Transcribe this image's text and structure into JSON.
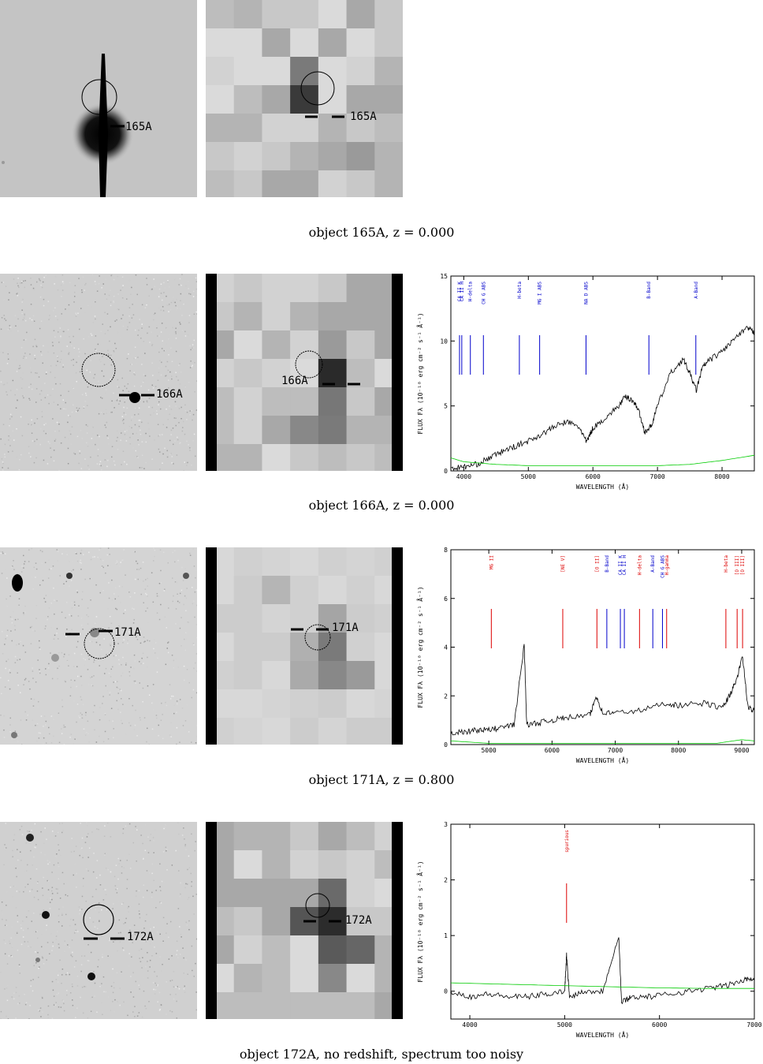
{
  "objects": [
    {
      "id": "165A",
      "caption": "object 165A, z = 0.000",
      "stamp_label": "165A",
      "has_spectrum": false
    },
    {
      "id": "166A",
      "caption": "object 166A, z = 0.000",
      "stamp_label": "166A",
      "has_spectrum": true
    },
    {
      "id": "171A",
      "caption": "object 171A, z = 0.800",
      "stamp_label": "171A",
      "has_spectrum": true
    },
    {
      "id": "172A",
      "caption": "object 172A, no redshift, spectrum too noisy",
      "stamp_label": "172A",
      "has_spectrum": true
    }
  ],
  "axis_text": {
    "xlabel": "WAVELENGTH (Å)",
    "ylabel": "FLUX Fλ (10⁻¹⁸ erg cm⁻² s⁻¹ Å⁻¹)"
  },
  "colors": {
    "spectrum": "#000000",
    "noise": "#00cc00",
    "emission_marker": "#dd0000",
    "absorption_marker": "#0000cc"
  },
  "chart_data": [
    {
      "type": "line",
      "object": "166A",
      "xlabel": "WAVELENGTH (Å)",
      "ylabel": "FLUX Fλ (10⁻¹⁸ erg cm⁻² s⁻¹ Å⁻¹)",
      "xlim": [
        3800,
        8500
      ],
      "ylim": [
        0,
        15
      ],
      "xticks": [
        "4000",
        "5000",
        "6000",
        "7000",
        "8000"
      ],
      "yticks": [
        "0",
        "5",
        "10",
        "15"
      ],
      "line_markers": [
        {
          "name": "CA II K",
          "x": 3934,
          "kind": "absorption"
        },
        {
          "name": "CA II H",
          "x": 3969,
          "kind": "absorption"
        },
        {
          "name": "H-delta",
          "x": 4102,
          "kind": "absorption"
        },
        {
          "name": "CH G ABS",
          "x": 4304,
          "kind": "absorption"
        },
        {
          "name": "H-beta",
          "x": 4861,
          "kind": "absorption"
        },
        {
          "name": "MG I ABS",
          "x": 5175,
          "kind": "absorption"
        },
        {
          "name": "NA D ABS",
          "x": 5893,
          "kind": "absorption"
        },
        {
          "name": "B-Band",
          "x": 6867,
          "kind": "absorption"
        },
        {
          "name": "A-Band",
          "x": 7594,
          "kind": "absorption"
        }
      ],
      "series": [
        {
          "kind": "flux",
          "x": [
            3800,
            4000,
            4200,
            4400,
            4600,
            4800,
            5000,
            5200,
            5400,
            5600,
            5800,
            5900,
            6000,
            6200,
            6400,
            6500,
            6600,
            6700,
            6800,
            6900,
            7000,
            7200,
            7400,
            7500,
            7600,
            7700,
            7800,
            8000,
            8200,
            8400,
            8500
          ],
          "y": [
            0.2,
            0.3,
            0.5,
            1.0,
            1.5,
            1.9,
            2.3,
            2.8,
            3.4,
            3.8,
            3.3,
            2.2,
            3.3,
            4.1,
            5.0,
            5.7,
            5.5,
            4.8,
            3.0,
            3.4,
            5.0,
            7.5,
            8.6,
            7.5,
            6.2,
            8.0,
            8.5,
            9.2,
            10.2,
            11.0,
            10.6
          ]
        },
        {
          "kind": "noise",
          "x": [
            3800,
            4000,
            4500,
            5000,
            5500,
            6000,
            6500,
            7000,
            7500,
            8000,
            8500
          ],
          "y": [
            1.0,
            0.7,
            0.5,
            0.4,
            0.4,
            0.4,
            0.4,
            0.4,
            0.5,
            0.8,
            1.2
          ]
        }
      ]
    },
    {
      "type": "line",
      "object": "171A",
      "xlabel": "WAVELENGTH (Å)",
      "ylabel": "FLUX Fλ (10⁻¹⁸ erg cm⁻² s⁻¹ Å⁻¹)",
      "xlim": [
        4400,
        9200
      ],
      "ylim": [
        0,
        8
      ],
      "xticks": [
        "5000",
        "6000",
        "7000",
        "8000",
        "9000"
      ],
      "yticks": [
        "0",
        "2",
        "4",
        "6",
        "8"
      ],
      "line_markers": [
        {
          "name": "MG II",
          "x": 5040,
          "kind": "emission"
        },
        {
          "name": "[NE V]",
          "x": 6170,
          "kind": "emission"
        },
        {
          "name": "[O II]",
          "x": 6710,
          "kind": "emission"
        },
        {
          "name": "B-Band",
          "x": 6867,
          "kind": "absorption"
        },
        {
          "name": "CA II K",
          "x": 7081,
          "kind": "absorption"
        },
        {
          "name": "CA II H",
          "x": 7144,
          "kind": "absorption"
        },
        {
          "name": "H-delta",
          "x": 7384,
          "kind": "emission"
        },
        {
          "name": "A-Band",
          "x": 7594,
          "kind": "absorption"
        },
        {
          "name": "CH G ABS",
          "x": 7747,
          "kind": "absorption"
        },
        {
          "name": "H-gamma",
          "x": 7813,
          "kind": "emission"
        },
        {
          "name": "H-beta",
          "x": 8750,
          "kind": "emission"
        },
        {
          "name": "[O III]",
          "x": 8928,
          "kind": "emission"
        },
        {
          "name": "[O III]",
          "x": 9014,
          "kind": "emission"
        }
      ],
      "series": [
        {
          "kind": "flux",
          "x": [
            4400,
            4600,
            4800,
            5000,
            5200,
            5400,
            5560,
            5600,
            5800,
            6000,
            6200,
            6600,
            6700,
            6800,
            7000,
            7400,
            7800,
            8000,
            8400,
            8700,
            8800,
            8900,
            9014,
            9100,
            9200
          ],
          "y": [
            0.5,
            0.5,
            0.6,
            0.6,
            0.7,
            0.8,
            4.1,
            0.8,
            0.9,
            1.0,
            1.1,
            1.2,
            2.0,
            1.3,
            1.3,
            1.4,
            1.7,
            1.6,
            1.7,
            1.5,
            2.0,
            2.5,
            3.6,
            1.5,
            1.4
          ]
        },
        {
          "kind": "noise",
          "x": [
            4400,
            5000,
            6000,
            7000,
            8000,
            8600,
            9000,
            9200
          ],
          "y": [
            0.15,
            0.05,
            0.05,
            0.05,
            0.05,
            0.05,
            0.2,
            0.15
          ]
        }
      ]
    },
    {
      "type": "line",
      "object": "172A",
      "xlabel": "WAVELENGTH (Å)",
      "ylabel": "FLUX Fλ (10⁻¹⁸ erg cm⁻² s⁻¹ Å⁻¹)",
      "xlim": [
        3800,
        7000
      ],
      "ylim": [
        -0.5,
        3
      ],
      "xticks": [
        "4000",
        "5000",
        "6000",
        "7000"
      ],
      "yticks": [
        "0",
        "1",
        "2",
        "3"
      ],
      "line_markers": [
        {
          "name": "spurious",
          "x": 5020,
          "kind": "emission"
        }
      ],
      "series": [
        {
          "kind": "flux",
          "x": [
            3800,
            4000,
            4200,
            4400,
            4600,
            4800,
            5000,
            5020,
            5050,
            5200,
            5400,
            5570,
            5600,
            5700,
            5900,
            6100,
            6300,
            6500,
            6700,
            6900,
            7000
          ],
          "y": [
            0.0,
            -0.1,
            -0.05,
            -0.1,
            -0.1,
            -0.05,
            0.0,
            0.65,
            -0.1,
            0.0,
            0.0,
            1.0,
            -0.2,
            -0.1,
            -0.1,
            -0.05,
            0.0,
            0.05,
            0.1,
            0.2,
            0.25
          ]
        },
        {
          "kind": "noise",
          "x": [
            3800,
            4500,
            5000,
            5500,
            6000,
            6500,
            7000
          ],
          "y": [
            0.15,
            0.12,
            0.1,
            0.08,
            0.06,
            0.05,
            0.05
          ]
        }
      ]
    }
  ]
}
